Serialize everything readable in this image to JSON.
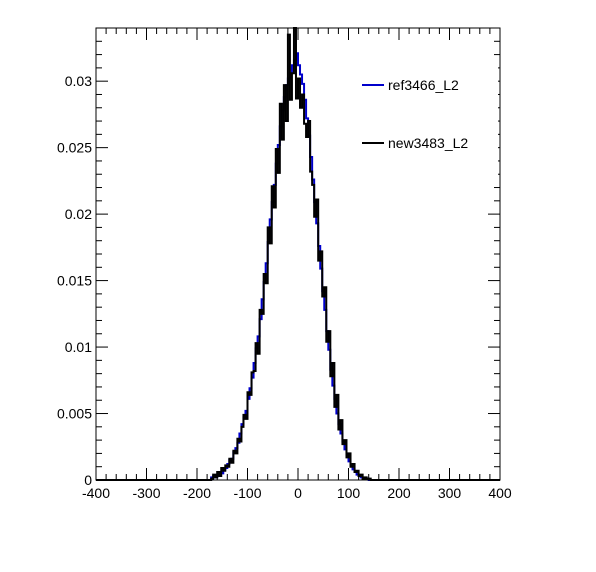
{
  "chart_data": {
    "type": "line",
    "title": "",
    "xlabel": "",
    "ylabel": "",
    "xlim": [
      -400,
      400
    ],
    "ylim": [
      0,
      0.034
    ],
    "x_ticks": [
      -400,
      -300,
      -200,
      -100,
      0,
      100,
      200,
      300,
      400
    ],
    "y_ticks": [
      0,
      0.005,
      0.01,
      0.015,
      0.02,
      0.025,
      0.03
    ],
    "x_tick_labels": [
      "-400",
      "-300",
      "-200",
      "-100",
      "0",
      "100",
      "200",
      "300",
      "400"
    ],
    "y_tick_labels": [
      "0",
      "0.005",
      "0.01",
      "0.015",
      "0.02",
      "0.025",
      "0.03"
    ],
    "grid": false,
    "legend_position": "top-right",
    "bin_width": 4,
    "bins_start": -172,
    "series": [
      {
        "name": "ref3466_L2",
        "color": "#0000cc",
        "values": [
          0.0002,
          0.0003,
          0.0002,
          0.0004,
          0.0006,
          0.0005,
          0.0008,
          0.0009,
          0.0012,
          0.0015,
          0.0016,
          0.0021,
          0.0024,
          0.0028,
          0.0035,
          0.0042,
          0.0047,
          0.0052,
          0.0061,
          0.0069,
          0.0077,
          0.0088,
          0.0099,
          0.0108,
          0.0121,
          0.0136,
          0.0149,
          0.0163,
          0.0179,
          0.0196,
          0.0209,
          0.0222,
          0.0238,
          0.0252,
          0.0266,
          0.0278,
          0.0288,
          0.0297,
          0.0302,
          0.0306,
          0.0312,
          0.0316,
          0.0321,
          0.0312,
          0.0305,
          0.0298,
          0.0286,
          0.0272,
          0.0259,
          0.0243,
          0.0226,
          0.0209,
          0.0193,
          0.0176,
          0.0159,
          0.0142,
          0.0128,
          0.0112,
          0.0098,
          0.0083,
          0.0071,
          0.0061,
          0.005,
          0.0042,
          0.0035,
          0.0029,
          0.0023,
          0.0019,
          0.0014,
          0.0011,
          0.0008,
          0.0006,
          0.0004,
          0.0003,
          0.0002,
          0.0001,
          0.0001,
          0.0001,
          0.0,
          0.0,
          0.0,
          0.0,
          0.0,
          0.0,
          0.0,
          0.0
        ]
      },
      {
        "name": "new3483_L2",
        "color": "#000000",
        "values": [
          0.0001,
          0.0004,
          0.0002,
          0.0006,
          0.0003,
          0.0009,
          0.0007,
          0.0011,
          0.001,
          0.0016,
          0.0013,
          0.0022,
          0.002,
          0.0031,
          0.0029,
          0.004,
          0.0049,
          0.0046,
          0.0066,
          0.0064,
          0.0081,
          0.0082,
          0.0103,
          0.0095,
          0.0128,
          0.0125,
          0.0155,
          0.0148,
          0.019,
          0.0178,
          0.0221,
          0.0205,
          0.0249,
          0.0231,
          0.0283,
          0.0256,
          0.0297,
          0.027,
          0.0335,
          0.0286,
          0.0306,
          0.034,
          0.0287,
          0.0302,
          0.028,
          0.029,
          0.0268,
          0.0258,
          0.027,
          0.0232,
          0.0222,
          0.0198,
          0.0211,
          0.0165,
          0.0172,
          0.0138,
          0.0145,
          0.0104,
          0.0112,
          0.0078,
          0.0088,
          0.0055,
          0.0064,
          0.0038,
          0.0045,
          0.0027,
          0.003,
          0.0017,
          0.002,
          0.001,
          0.0012,
          0.0006,
          0.0007,
          0.0003,
          0.0004,
          0.0001,
          0.0002,
          0.0001,
          0.0001,
          0.0,
          0.0,
          0.0,
          0.0,
          0.0,
          0.0,
          0.0
        ]
      }
    ]
  }
}
